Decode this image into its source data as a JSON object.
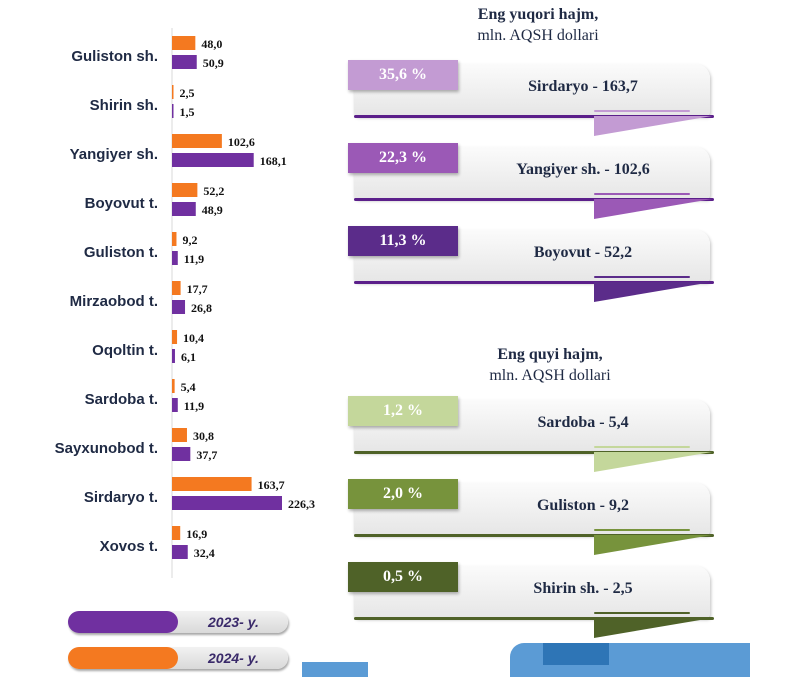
{
  "chart_data": {
    "type": "bar",
    "orientation": "horizontal",
    "categories": [
      "Guliston sh.",
      "Shirin sh.",
      "Yangiyer sh.",
      "Boyovut t.",
      "Guliston t.",
      "Mirzaobod t.",
      "Oqoltin t.",
      "Sardoba t.",
      "Sayxunobod t.",
      "Sirdaryo t.",
      "Xovos t."
    ],
    "series": [
      {
        "name": "2024- y.",
        "color": "#f47920",
        "values": [
          48.0,
          2.5,
          102.6,
          52.2,
          9.2,
          17.7,
          10.4,
          5.4,
          30.8,
          163.7,
          16.9
        ],
        "labels": [
          "48,0",
          "2,5",
          "102,6",
          "52,2",
          "9,2",
          "17,7",
          "10,4",
          "5,4",
          "30,8",
          "163,7",
          "16,9"
        ]
      },
      {
        "name": "2023- y.",
        "color": "#7030a0",
        "values": [
          50.9,
          1.5,
          168.1,
          48.9,
          11.9,
          26.8,
          6.1,
          11.9,
          37.7,
          226.3,
          32.4
        ],
        "labels": [
          "50,9",
          "1,5",
          "168,1",
          "48,9",
          "11,9",
          "26,8",
          "6,1",
          "11,9",
          "37,7",
          "226,3",
          "32,4"
        ]
      }
    ],
    "grid": false,
    "legend_position": "bottom-left"
  },
  "legend": [
    {
      "label": "2023- y.",
      "color": "#7030a0"
    },
    {
      "label": "2024- y.",
      "color": "#f47920"
    }
  ],
  "top_section": {
    "title_line1": "Eng yuqori hajm,",
    "title_line2": "mln. AQSH dollari",
    "cards": [
      {
        "percent": "35,6 %",
        "label": "Sirdaryo - 163,7",
        "color": "#c39bd3",
        "accent": "#5b1f8a"
      },
      {
        "percent": "22,3 %",
        "label": "Yangiyer sh. - 102,6",
        "color": "#9b59b6",
        "accent": "#5b1f8a"
      },
      {
        "percent": "11,3 %",
        "label": "Boyovut  - 52,2",
        "color": "#5b2c8a",
        "accent": "#5b1f8a"
      }
    ]
  },
  "bottom_section": {
    "title_line1": "Eng quyi hajm,",
    "title_line2": "mln. AQSH dollari",
    "cards": [
      {
        "percent": "1,2 %",
        "label": "Sardoba -  5,4",
        "color": "#c4d79b",
        "accent": "#4f6228"
      },
      {
        "percent": "2,0 %",
        "label": "Guliston - 9,2",
        "color": "#77933c",
        "accent": "#4f6228"
      },
      {
        "percent": "0,5 %",
        "label": "Shirin sh. - 2,5",
        "color": "#4f6228",
        "accent": "#4f6228"
      }
    ]
  }
}
